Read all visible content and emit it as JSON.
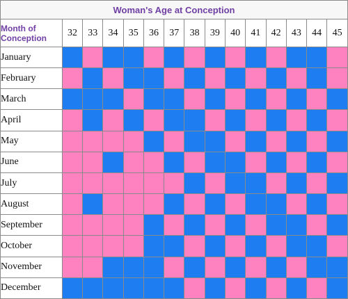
{
  "title": "Woman's Age at Conception",
  "month_header": [
    "Month of",
    "Conception"
  ],
  "ages": [
    "32",
    "33",
    "34",
    "35",
    "36",
    "37",
    "38",
    "39",
    "40",
    "41",
    "42",
    "43",
    "44",
    "45"
  ],
  "colors": {
    "girl": "#ff82c0",
    "boy": "#1f7df2"
  },
  "rows": [
    {
      "month": "January",
      "cells": [
        "boy",
        "girl",
        "boy",
        "boy",
        "girl",
        "boy",
        "girl",
        "boy",
        "girl",
        "boy",
        "girl",
        "boy",
        "boy",
        "girl"
      ]
    },
    {
      "month": "February",
      "cells": [
        "girl",
        "boy",
        "girl",
        "boy",
        "boy",
        "girl",
        "boy",
        "girl",
        "boy",
        "girl",
        "boy",
        "girl",
        "boy",
        "girl"
      ]
    },
    {
      "month": "March",
      "cells": [
        "boy",
        "boy",
        "boy",
        "girl",
        "boy",
        "boy",
        "girl",
        "boy",
        "girl",
        "boy",
        "girl",
        "boy",
        "girl",
        "boy"
      ]
    },
    {
      "month": "April",
      "cells": [
        "girl",
        "boy",
        "girl",
        "boy",
        "girl",
        "boy",
        "boy",
        "girl",
        "boy",
        "girl",
        "boy",
        "girl",
        "boy",
        "girl"
      ]
    },
    {
      "month": "May",
      "cells": [
        "girl",
        "girl",
        "girl",
        "girl",
        "boy",
        "girl",
        "boy",
        "boy",
        "girl",
        "boy",
        "girl",
        "boy",
        "girl",
        "boy"
      ]
    },
    {
      "month": "June",
      "cells": [
        "girl",
        "girl",
        "boy",
        "girl",
        "girl",
        "boy",
        "girl",
        "boy",
        "boy",
        "girl",
        "boy",
        "girl",
        "boy",
        "girl"
      ]
    },
    {
      "month": "July",
      "cells": [
        "girl",
        "girl",
        "girl",
        "girl",
        "girl",
        "girl",
        "boy",
        "girl",
        "boy",
        "boy",
        "girl",
        "boy",
        "girl",
        "boy"
      ]
    },
    {
      "month": "August",
      "cells": [
        "girl",
        "boy",
        "girl",
        "girl",
        "girl",
        "boy",
        "girl",
        "boy",
        "girl",
        "boy",
        "boy",
        "girl",
        "boy",
        "girl"
      ]
    },
    {
      "month": "September",
      "cells": [
        "girl",
        "girl",
        "girl",
        "girl",
        "boy",
        "girl",
        "boy",
        "girl",
        "boy",
        "girl",
        "boy",
        "boy",
        "girl",
        "boy"
      ]
    },
    {
      "month": "October",
      "cells": [
        "girl",
        "girl",
        "girl",
        "girl",
        "boy",
        "boy",
        "girl",
        "boy",
        "girl",
        "boy",
        "girl",
        "boy",
        "boy",
        "girl"
      ]
    },
    {
      "month": "November",
      "cells": [
        "girl",
        "girl",
        "boy",
        "boy",
        "boy",
        "girl",
        "boy",
        "girl",
        "boy",
        "girl",
        "boy",
        "girl",
        "boy",
        "boy"
      ]
    },
    {
      "month": "December",
      "cells": [
        "boy",
        "boy",
        "boy",
        "boy",
        "boy",
        "boy",
        "girl",
        "boy",
        "girl",
        "boy",
        "girl",
        "boy",
        "girl",
        "boy"
      ]
    }
  ]
}
